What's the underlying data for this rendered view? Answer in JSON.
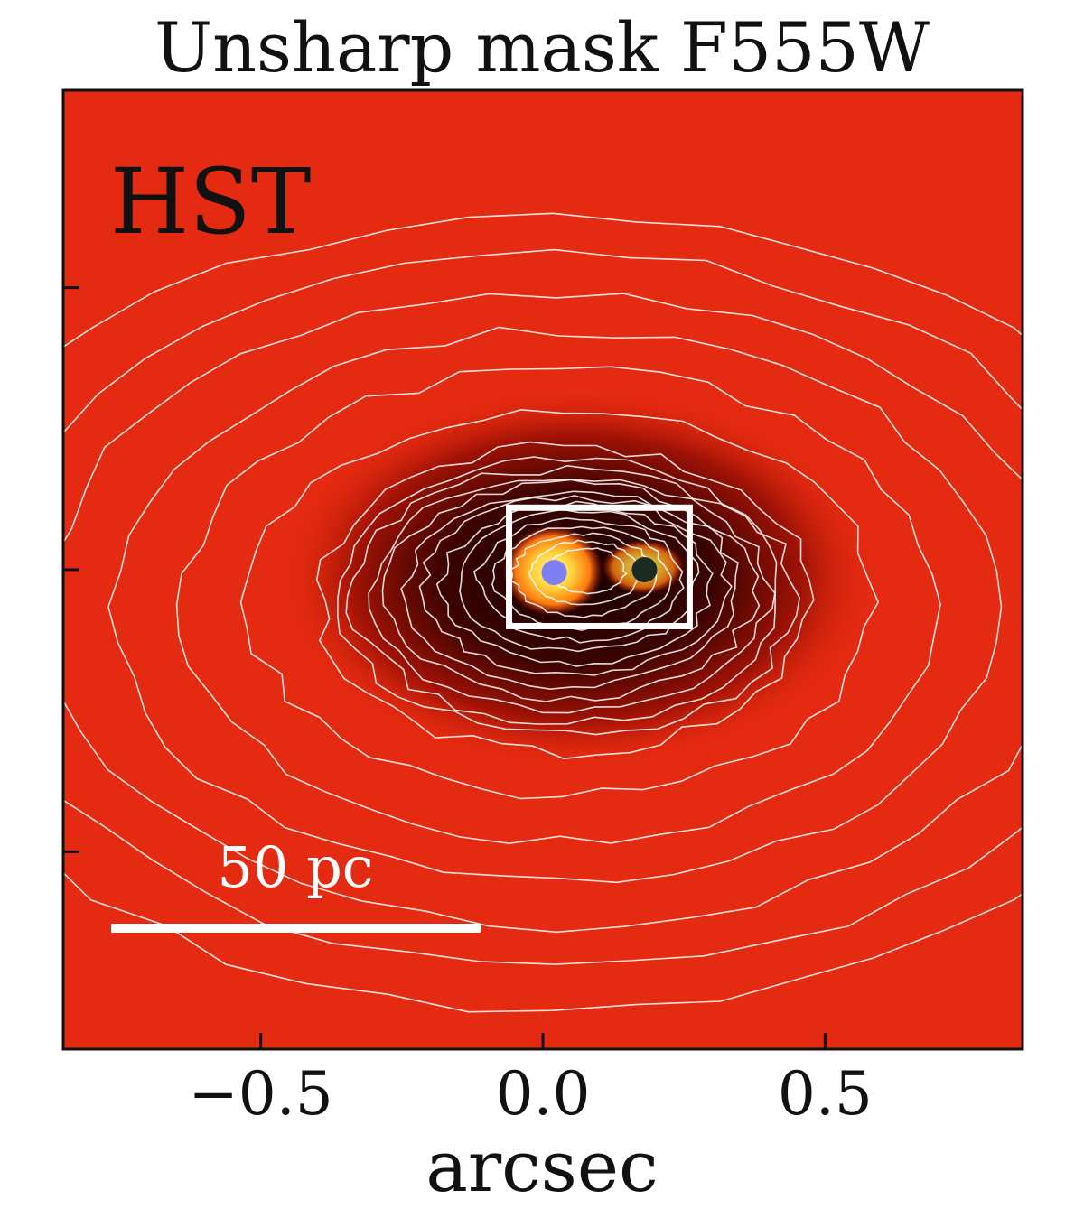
{
  "chart_data": {
    "type": "heatmap",
    "title": "Unsharp mask F555W",
    "xlabel": "arcsec",
    "ylabel": "",
    "xlim": [
      -0.85,
      0.85
    ],
    "ylim": [
      -0.85,
      0.85
    ],
    "xticks": [
      -0.5,
      0.0,
      0.5
    ],
    "xtick_labels": [
      "−0.5",
      "0.0",
      "0.5"
    ],
    "yticks": [
      -0.5,
      0.0,
      0.5
    ],
    "grid": false,
    "colormap": "black-red-yellow-white",
    "background_color": "#e42a10",
    "contour_color": "#ffffff",
    "annotations": {
      "panel_label": "HST",
      "scale_bar_label": "50 pc"
    },
    "markers": [
      {
        "name": "",
        "x": 0.02,
        "y": -0.005,
        "color": "#7f7ff5"
      },
      {
        "name": "",
        "x": 0.18,
        "y": 0.0,
        "color": "#1b2a22"
      }
    ],
    "box": {
      "x": [
        -0.06,
        0.26
      ],
      "y": [
        -0.1,
        0.11
      ],
      "color": "#ffffff"
    }
  }
}
